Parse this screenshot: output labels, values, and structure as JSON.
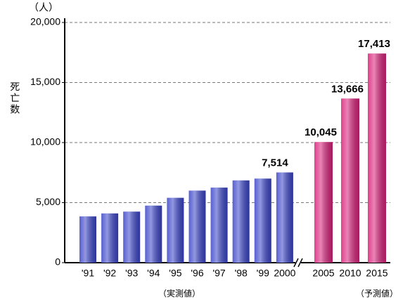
{
  "chart_data": {
    "type": "bar",
    "unit_label": "（人）",
    "y_label": "死亡数",
    "categories": [
      "'91",
      "'92",
      "'93",
      "'94",
      "'95",
      "'96",
      "'97",
      "'98",
      "'99",
      "2000",
      "2005",
      "2010",
      "2015"
    ],
    "series": [
      {
        "name": "（実測値）",
        "color": "#3a44c8",
        "values": [
          3850,
          4100,
          4250,
          4750,
          5400,
          6000,
          6250,
          6850,
          7000,
          7514,
          null,
          null,
          null
        ],
        "value_labels": [
          null,
          null,
          null,
          null,
          null,
          null,
          null,
          null,
          null,
          "7,514",
          null,
          null,
          null
        ]
      },
      {
        "name": "（予測値）",
        "color": "#d8207a",
        "values": [
          null,
          null,
          null,
          null,
          null,
          null,
          null,
          null,
          null,
          null,
          10045,
          13666,
          17413
        ],
        "value_labels": [
          null,
          null,
          null,
          null,
          null,
          null,
          null,
          null,
          null,
          null,
          "10,045",
          "13,666",
          "17,413"
        ]
      }
    ],
    "ylim": [
      0,
      20000
    ],
    "yticks": [
      0,
      {
        "value": 5000,
        "label": "5,000"
      },
      {
        "value": 10000,
        "label": "10,000"
      },
      {
        "value": 15000,
        "label": "15,000"
      },
      {
        "value": 20000,
        "label": "20,000"
      }
    ],
    "grid": true
  }
}
